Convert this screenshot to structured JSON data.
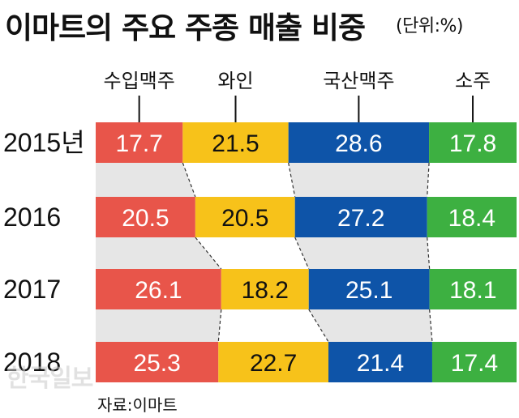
{
  "title": "이마트의 주요 주종 매출 비중",
  "unit": "(단위:%)",
  "source": "자료:이마트",
  "watermark": "한국일보",
  "chart_data": {
    "type": "bar",
    "stacked": true,
    "orientation": "horizontal",
    "categories": [
      "2015년",
      "2016",
      "2017",
      "2018"
    ],
    "series": [
      {
        "name": "수입맥주",
        "color": "#e8554a",
        "values": [
          17.7,
          20.5,
          26.1,
          25.3
        ]
      },
      {
        "name": "와인",
        "color": "#f7c21a",
        "values": [
          21.5,
          20.5,
          18.2,
          22.7
        ]
      },
      {
        "name": "국산맥주",
        "color": "#0e54a8",
        "values": [
          28.6,
          27.2,
          25.1,
          21.4
        ]
      },
      {
        "name": "소주",
        "color": "#3db041",
        "values": [
          17.8,
          18.4,
          18.1,
          17.4
        ]
      }
    ],
    "value_labels": [
      [
        "17.7",
        "21.5",
        "28.6",
        "17.8"
      ],
      [
        "20.5",
        "20.5",
        "27.2",
        "18.4"
      ],
      [
        "26.1",
        "18.2",
        "25.1",
        "18.1"
      ],
      [
        "25.3",
        "22.7",
        "21.4",
        "17.4"
      ]
    ],
    "label_colors": [
      "#ffffff",
      "#111111",
      "#ffffff",
      "#ffffff"
    ],
    "legend_position": "top",
    "connector_fill": "#e6e6e6"
  }
}
